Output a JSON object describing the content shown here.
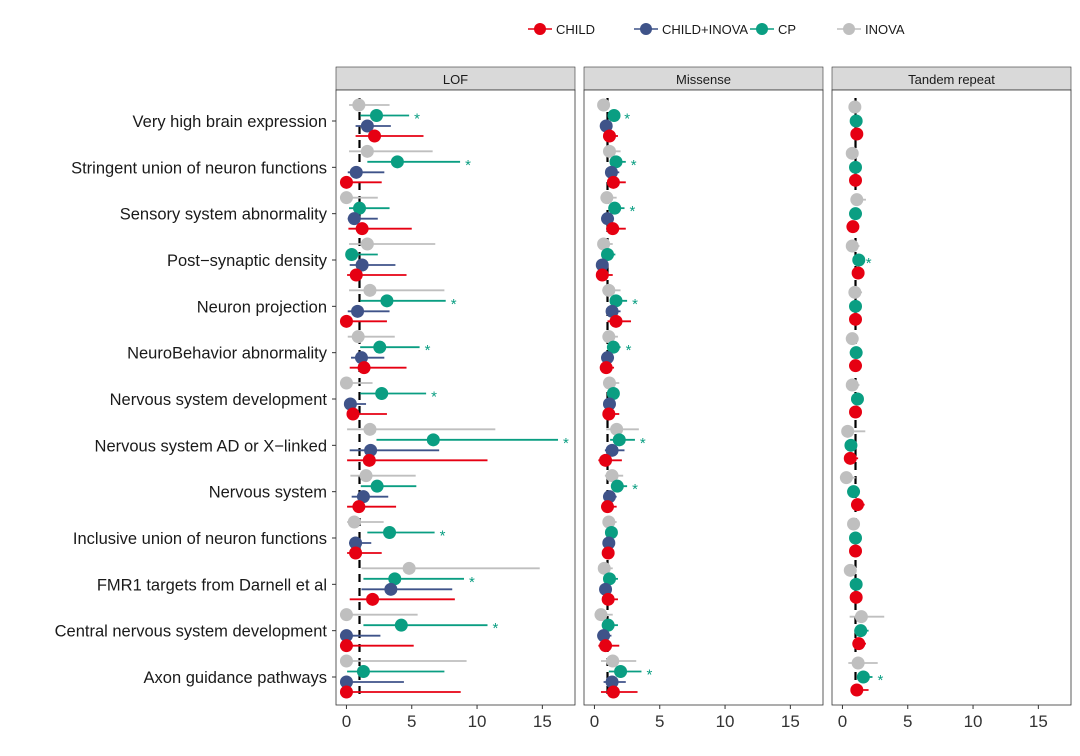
{
  "chart_data": {
    "type": "forest",
    "categories": [
      "Very high brain expression",
      "Stringent union of neuron functions",
      "Sensory system abnormality",
      "Post−synaptic density",
      "Neuron projection",
      "NeuroBehavior abnormality",
      "Nervous system development",
      "Nervous system AD or X−linked",
      "Nervous system",
      "Inclusive union of neuron functions",
      "FMR1 targets from Darnell et al",
      "Central nervous system development",
      "Axon guidance pathways"
    ],
    "legend": {
      "placement": "top",
      "entries": [
        "CHILD",
        "CHILD+INOVA",
        "CP",
        "INOVA"
      ]
    },
    "colors": {
      "CHILD": "#e60012",
      "CHILD+INOVA": "#3f5389",
      "CP": "#0a9e82",
      "INOVA": "#bfbfbf"
    },
    "reference_line": 1,
    "xlim": [
      -0.8,
      17.5
    ],
    "xticks": [
      0,
      5,
      10,
      15
    ],
    "significance_marker": "*",
    "value_format": "[estimate, lower, upper, significant]",
    "panels": [
      {
        "name": "LOF",
        "series": {
          "INOVA": [
            [
              0.95,
              0.2,
              3.3,
              false
            ],
            [
              1.6,
              0.2,
              6.6,
              false
            ],
            [
              0,
              0,
              2.4,
              false
            ],
            [
              1.6,
              0.2,
              6.8,
              false
            ],
            [
              1.8,
              0.2,
              7.5,
              false
            ],
            [
              0.9,
              0.1,
              3.7,
              false
            ],
            [
              0,
              0,
              2.0,
              false
            ],
            [
              1.8,
              0.05,
              11.4,
              false
            ],
            [
              1.5,
              0.3,
              5.3,
              false
            ],
            [
              0.6,
              0.05,
              2.85,
              false
            ],
            [
              4.8,
              1.15,
              14.8,
              false
            ],
            [
              0,
              0,
              5.45,
              false
            ],
            [
              0,
              0,
              9.2,
              false
            ]
          ],
          "CP": [
            [
              2.3,
              1.05,
              4.8,
              true
            ],
            [
              3.9,
              1.6,
              8.7,
              true
            ],
            [
              1.0,
              0.2,
              3.3,
              false
            ],
            [
              0.4,
              0.4,
              2.4,
              false
            ],
            [
              3.1,
              1.05,
              7.6,
              true
            ],
            [
              2.55,
              1.05,
              5.6,
              true
            ],
            [
              2.7,
              1.05,
              6.1,
              true
            ],
            [
              6.65,
              2.3,
              16.2,
              true
            ],
            [
              2.35,
              1.1,
              5.35,
              false
            ],
            [
              3.3,
              1.6,
              6.75,
              true
            ],
            [
              3.7,
              1.3,
              9.0,
              true
            ],
            [
              4.2,
              1.3,
              10.8,
              true
            ],
            [
              1.3,
              0.05,
              7.5,
              false
            ]
          ],
          "CHILD+INOVA": [
            [
              1.6,
              0.7,
              3.4,
              false
            ],
            [
              0.75,
              0.1,
              2.9,
              false
            ],
            [
              0.6,
              0.1,
              2.4,
              false
            ],
            [
              1.2,
              0.25,
              3.75,
              false
            ],
            [
              0.85,
              0.1,
              3.3,
              false
            ],
            [
              1.15,
              0.35,
              2.9,
              false
            ],
            [
              0.3,
              0.3,
              1.5,
              false
            ],
            [
              1.85,
              0.25,
              7.1,
              false
            ],
            [
              1.3,
              0.4,
              3.2,
              false
            ],
            [
              0.7,
              0.2,
              1.9,
              false
            ],
            [
              3.4,
              1.15,
              8.1,
              false
            ],
            [
              0,
              0,
              2.6,
              false
            ],
            [
              0,
              0,
              4.4,
              false
            ]
          ],
          "CHILD": [
            [
              2.15,
              0.7,
              5.9,
              false
            ],
            [
              0,
              0,
              2.7,
              false
            ],
            [
              1.2,
              0.15,
              5.0,
              false
            ],
            [
              0.75,
              0.05,
              4.6,
              false
            ],
            [
              0,
              0,
              3.1,
              false
            ],
            [
              1.35,
              0.25,
              4.6,
              false
            ],
            [
              0.5,
              0.05,
              3.1,
              false
            ],
            [
              1.75,
              0.05,
              10.8,
              false
            ],
            [
              0.95,
              0.05,
              3.8,
              false
            ],
            [
              0.7,
              0.05,
              2.7,
              false
            ],
            [
              2.0,
              0.25,
              8.3,
              false
            ],
            [
              0,
              0,
              5.15,
              false
            ],
            [
              0,
              0,
              8.75,
              false
            ]
          ]
        }
      },
      {
        "name": "Missense",
        "series": {
          "INOVA": [
            [
              0.7,
              0.5,
              1.0,
              false
            ],
            [
              1.15,
              0.8,
              2.0,
              false
            ],
            [
              0.95,
              0.6,
              1.7,
              false
            ],
            [
              0.7,
              0.4,
              1.4,
              false
            ],
            [
              1.1,
              0.6,
              2.0,
              false
            ],
            [
              1.1,
              0.8,
              1.8,
              false
            ],
            [
              1.15,
              0.8,
              1.9,
              false
            ],
            [
              1.7,
              0.9,
              3.4,
              false
            ],
            [
              1.35,
              0.8,
              2.2,
              false
            ],
            [
              1.1,
              0.8,
              1.7,
              false
            ],
            [
              0.75,
              0.4,
              1.4,
              false
            ],
            [
              0.5,
              0.2,
              1.4,
              false
            ],
            [
              1.4,
              0.5,
              3.2,
              false
            ]
          ],
          "CP": [
            [
              1.5,
              1.2,
              1.9,
              true
            ],
            [
              1.65,
              1.2,
              2.4,
              true
            ],
            [
              1.55,
              1.2,
              2.3,
              true
            ],
            [
              1.0,
              0.7,
              1.6,
              false
            ],
            [
              1.65,
              1.2,
              2.5,
              true
            ],
            [
              1.45,
              1.1,
              2.0,
              true
            ],
            [
              1.45,
              1.1,
              1.9,
              false
            ],
            [
              1.9,
              1.2,
              3.1,
              true
            ],
            [
              1.75,
              1.3,
              2.5,
              true
            ],
            [
              1.3,
              1.0,
              1.7,
              false
            ],
            [
              1.15,
              0.8,
              1.8,
              false
            ],
            [
              1.05,
              0.6,
              1.8,
              false
            ],
            [
              2.0,
              1.1,
              3.6,
              true
            ]
          ],
          "CHILD+INOVA": [
            [
              0.9,
              0.7,
              1.1,
              false
            ],
            [
              1.3,
              1.0,
              1.9,
              false
            ],
            [
              1.0,
              0.7,
              1.5,
              false
            ],
            [
              0.6,
              0.3,
              0.9,
              false
            ],
            [
              1.35,
              0.9,
              2.0,
              false
            ],
            [
              1.0,
              0.7,
              1.5,
              false
            ],
            [
              1.15,
              0.8,
              1.6,
              false
            ],
            [
              1.35,
              0.8,
              2.3,
              false
            ],
            [
              1.15,
              0.8,
              1.7,
              false
            ],
            [
              1.1,
              0.8,
              1.5,
              false
            ],
            [
              0.85,
              0.6,
              1.2,
              false
            ],
            [
              0.7,
              0.3,
              1.3,
              false
            ],
            [
              1.35,
              0.7,
              2.4,
              false
            ]
          ],
          "CHILD": [
            [
              1.15,
              0.9,
              1.8,
              false
            ],
            [
              1.45,
              1.0,
              2.4,
              false
            ],
            [
              1.4,
              0.9,
              2.4,
              false
            ],
            [
              0.6,
              0.3,
              1.4,
              false
            ],
            [
              1.65,
              1.0,
              2.8,
              false
            ],
            [
              0.9,
              0.6,
              1.5,
              false
            ],
            [
              1.1,
              0.8,
              1.9,
              false
            ],
            [
              0.85,
              0.3,
              2.1,
              false
            ],
            [
              1.0,
              0.6,
              1.7,
              false
            ],
            [
              1.05,
              0.7,
              1.5,
              false
            ],
            [
              1.05,
              0.7,
              1.8,
              false
            ],
            [
              0.85,
              0.3,
              1.9,
              false
            ],
            [
              1.45,
              0.5,
              3.3,
              false
            ]
          ]
        }
      },
      {
        "name": "Tandem repeat",
        "series": {
          "INOVA": [
            [
              0.95,
              0.85,
              1.05,
              false
            ],
            [
              0.75,
              0.65,
              0.85,
              false
            ],
            [
              1.1,
              0.9,
              1.8,
              false
            ],
            [
              0.75,
              0.6,
              1.3,
              false
            ],
            [
              0.95,
              0.8,
              1.5,
              false
            ],
            [
              0.75,
              0.65,
              0.85,
              false
            ],
            [
              0.75,
              0.6,
              1.3,
              false
            ],
            [
              0.4,
              0.1,
              1.75,
              false
            ],
            [
              0.3,
              0.2,
              1.0,
              false
            ],
            [
              0.85,
              0.75,
              0.95,
              false
            ],
            [
              0.6,
              0.5,
              0.7,
              false
            ],
            [
              1.45,
              0.55,
              3.2,
              false
            ],
            [
              1.2,
              0.45,
              2.7,
              false
            ]
          ],
          "CP": [
            [
              1.05,
              0.95,
              1.15,
              false
            ],
            [
              1.0,
              0.9,
              1.1,
              false
            ],
            [
              1.0,
              0.9,
              1.1,
              false
            ],
            [
              1.25,
              1.1,
              1.4,
              true
            ],
            [
              1.0,
              0.9,
              1.1,
              false
            ],
            [
              1.05,
              0.95,
              1.15,
              false
            ],
            [
              1.15,
              1.05,
              1.25,
              false
            ],
            [
              0.65,
              0.55,
              0.75,
              false
            ],
            [
              0.85,
              0.75,
              0.95,
              false
            ],
            [
              1.0,
              0.9,
              1.1,
              false
            ],
            [
              1.05,
              0.95,
              1.15,
              false
            ],
            [
              1.4,
              1.1,
              2.0,
              false
            ],
            [
              1.6,
              1.2,
              2.3,
              true
            ]
          ],
          "CHILD": [
            [
              1.1,
              1.0,
              1.2,
              false
            ],
            [
              1.0,
              0.9,
              1.1,
              false
            ],
            [
              0.8,
              0.7,
              0.9,
              false
            ],
            [
              1.2,
              1.1,
              1.3,
              false
            ],
            [
              1.0,
              0.9,
              1.1,
              false
            ],
            [
              1.0,
              0.9,
              1.1,
              false
            ],
            [
              1.0,
              0.9,
              1.1,
              false
            ],
            [
              0.6,
              0.5,
              1.2,
              false
            ],
            [
              1.15,
              0.9,
              1.7,
              false
            ],
            [
              1.0,
              0.9,
              1.1,
              false
            ],
            [
              1.05,
              0.95,
              1.15,
              false
            ],
            [
              1.25,
              1.0,
              1.8,
              false
            ],
            [
              1.1,
              0.7,
              2.0,
              false
            ]
          ]
        }
      }
    ]
  }
}
